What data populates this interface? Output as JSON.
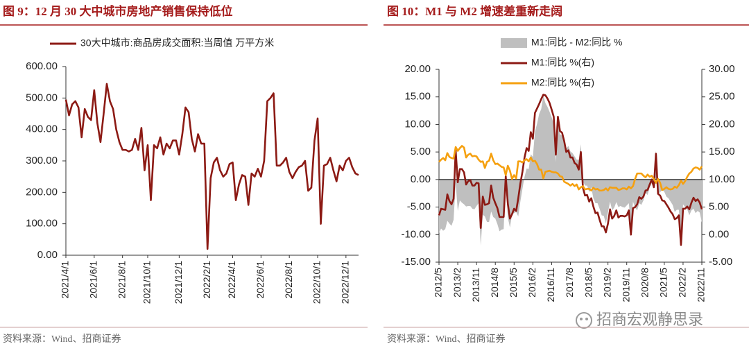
{
  "chart_data": [
    {
      "type": "line",
      "title": "图 9：12 月 30 大中城市房地产销售保持低位",
      "source": "资料来源：Wind、招商证券",
      "categories": [
        "2021/4/1",
        null,
        null,
        null,
        null,
        null,
        null,
        null,
        null,
        "2021/6/1",
        null,
        null,
        null,
        null,
        null,
        null,
        null,
        null,
        "2021/8/1",
        null,
        null,
        null,
        null,
        null,
        null,
        null,
        "2021/10/1",
        null,
        null,
        null,
        null,
        null,
        null,
        null,
        null,
        null,
        "2021/12/1",
        null,
        null,
        null,
        null,
        null,
        null,
        null,
        null,
        "2022/2/1",
        null,
        null,
        null,
        null,
        null,
        null,
        null,
        "2022/4/1",
        null,
        null,
        null,
        null,
        null,
        null,
        null,
        null,
        "2022/6/1",
        null,
        null,
        null,
        null,
        null,
        null,
        null,
        null,
        "2022/8/1",
        null,
        null,
        null,
        null,
        null,
        null,
        null,
        null,
        "2022/10/1",
        null,
        null,
        null,
        null,
        null,
        null,
        null,
        null,
        "2022/12/1",
        null,
        null,
        null,
        null
      ],
      "series": [
        {
          "name": "30大中城市:商品房成交面积:当周值 万平方米",
          "color": "#8c1a14",
          "values": [
            495,
            445,
            480,
            490,
            470,
            375,
            465,
            440,
            430,
            525,
            420,
            360,
            450,
            545,
            490,
            465,
            400,
            360,
            335,
            335,
            330,
            335,
            370,
            335,
            405,
            270,
            350,
            175,
            350,
            340,
            375,
            320,
            355,
            340,
            365,
            365,
            320,
            385,
            470,
            455,
            370,
            330,
            385,
            355,
            355,
            20,
            245,
            295,
            310,
            270,
            250,
            260,
            290,
            295,
            175,
            225,
            255,
            250,
            160,
            260,
            250,
            275,
            250,
            300,
            490,
            500,
            515,
            285,
            285,
            295,
            310,
            265,
            245,
            265,
            280,
            285,
            300,
            205,
            215,
            365,
            435,
            100,
            285,
            290,
            310,
            270,
            235,
            285,
            270,
            300,
            310,
            280,
            260,
            255
          ]
        }
      ],
      "ylim": [
        0,
        600
      ],
      "yticks": [
        {
          "value": 0,
          "label": "0.00"
        },
        {
          "value": 100,
          "label": "100.00"
        },
        {
          "value": 200,
          "label": "200.00"
        },
        {
          "value": 300,
          "label": "300.00"
        },
        {
          "value": 400,
          "label": "400.00"
        },
        {
          "value": 500,
          "label": "500.00"
        },
        {
          "value": 600,
          "label": "600.00"
        }
      ],
      "grid": false
    },
    {
      "type": "combo",
      "title": "图 10：M1 与 M2 增速差重新走阔",
      "source": "资料来源：Wind、招商证券",
      "categories": [
        "2012/5",
        null,
        null,
        null,
        null,
        null,
        null,
        null,
        null,
        "2013/2",
        null,
        null,
        null,
        null,
        null,
        null,
        null,
        null,
        "2013/11",
        null,
        null,
        null,
        null,
        null,
        null,
        null,
        null,
        "2014/8",
        null,
        null,
        null,
        null,
        null,
        null,
        null,
        null,
        "2015/5",
        null,
        null,
        null,
        null,
        null,
        null,
        null,
        null,
        "2016/2",
        null,
        null,
        null,
        null,
        null,
        null,
        null,
        null,
        "2016/11",
        null,
        null,
        null,
        null,
        null,
        null,
        null,
        null,
        "2017/8",
        null,
        null,
        null,
        null,
        null,
        null,
        null,
        null,
        "2018/5",
        null,
        null,
        null,
        null,
        null,
        null,
        null,
        null,
        "2019/2",
        null,
        null,
        null,
        null,
        null,
        null,
        null,
        null,
        "2019/11",
        null,
        null,
        null,
        null,
        null,
        null,
        null,
        null,
        "2020/8",
        null,
        null,
        null,
        null,
        null,
        null,
        null,
        null,
        "2021/5",
        null,
        null,
        null,
        null,
        null,
        null,
        null,
        null,
        "2022/2",
        null,
        null,
        null,
        null,
        null,
        null,
        null,
        null,
        "2022/11"
      ],
      "series": [
        {
          "name": "M1:同比 - M2:同比 %",
          "type": "area",
          "color": "#bfbfbf",
          "values": [
            -9.7,
            -8.9,
            -9.3,
            -9.0,
            -7.5,
            -8.0,
            -8.4,
            -7.3,
            -0.6,
            -5.7,
            -3.8,
            -4.2,
            -4.5,
            -4.9,
            -4.8,
            -4.8,
            -5.3,
            -5.4,
            -4.8,
            -4.3,
            -12.0,
            -6.4,
            -6.7,
            -7.7,
            -7.7,
            -5.8,
            -6.8,
            -7.1,
            -8.1,
            -9.4,
            -9.1,
            -9.0,
            -0.2,
            -6.9,
            -8.7,
            -6.4,
            -6.1,
            -5.9,
            -6.7,
            -4.0,
            -1.7,
            0.5,
            2.0,
            1.9,
            4.6,
            4.1,
            8.7,
            10.1,
            11.9,
            12.8,
            15.2,
            13.9,
            13.2,
            12.3,
            11.3,
            10.1,
            3.2,
            10.3,
            8.2,
            8.0,
            7.4,
            5.6,
            6.1,
            5.1,
            4.8,
            4.2,
            3.6,
            3.6,
            6.4,
            -0.3,
            -1.1,
            -1.1,
            -2.3,
            -1.4,
            -3.4,
            -4.3,
            -4.3,
            -5.3,
            -6.5,
            -6.6,
            -8.0,
            -6.0,
            -4.0,
            -5.6,
            -5.1,
            -4.1,
            -5.0,
            -4.8,
            -5.0,
            -5.1,
            -4.7,
            -4.3,
            -8.4,
            -4.0,
            -5.1,
            -5.6,
            -4.3,
            -4.6,
            -3.8,
            -2.4,
            -2.8,
            -1.4,
            -0.7,
            -1.5,
            5.3,
            -2.7,
            -2.3,
            -1.9,
            -2.2,
            -3.1,
            -3.4,
            -4.0,
            -4.6,
            -5.9,
            -5.5,
            -5.5,
            -11.7,
            -4.5,
            -5.0,
            -5.4,
            -6.5,
            -5.6,
            -5.3,
            -6.1,
            -5.7,
            -6.0,
            -7.8
          ]
        },
        {
          "name": "M1:同比 %(右)",
          "type": "line",
          "axis": "y2",
          "color": "#8c1a14",
          "values": [
            3.5,
            4.7,
            4.6,
            4.5,
            7.3,
            6.1,
            5.5,
            6.5,
            15.3,
            9.5,
            11.9,
            11.9,
            11.3,
            9.1,
            9.7,
            9.9,
            8.9,
            8.9,
            9.4,
            9.3,
            1.2,
            6.9,
            5.4,
            5.5,
            5.7,
            8.9,
            6.7,
            5.7,
            4.8,
            3.2,
            3.2,
            3.2,
            10.6,
            5.6,
            2.9,
            3.7,
            4.7,
            4.3,
            6.6,
            9.3,
            11.4,
            14.0,
            15.7,
            15.2,
            18.6,
            17.4,
            22.1,
            22.9,
            23.7,
            24.6,
            25.4,
            25.3,
            24.7,
            23.9,
            22.7,
            21.4,
            14.5,
            21.4,
            18.8,
            18.5,
            17.0,
            15.0,
            15.3,
            14.0,
            14.0,
            13.0,
            12.7,
            11.8,
            15.0,
            8.5,
            7.1,
            7.2,
            6.0,
            6.6,
            5.1,
            3.9,
            4.0,
            2.7,
            1.5,
            1.5,
            0.4,
            2.0,
            4.6,
            2.9,
            3.4,
            4.4,
            3.1,
            3.4,
            3.4,
            3.3,
            3.5,
            4.4,
            0.0,
            4.8,
            5.0,
            5.5,
            6.8,
            6.5,
            6.9,
            8.0,
            8.1,
            9.1,
            10.0,
            8.6,
            14.7,
            7.4,
            7.1,
            6.2,
            6.1,
            5.5,
            4.9,
            4.2,
            3.7,
            2.8,
            3.0,
            3.5,
            -1.9,
            4.7,
            4.7,
            5.1,
            4.6,
            5.8,
            6.7,
            6.1,
            6.4,
            5.8,
            4.6
          ]
        },
        {
          "name": "M2:同比 %(右)",
          "type": "line",
          "axis": "y2",
          "color": "#f5a00f",
          "values": [
            13.2,
            13.6,
            13.9,
            13.5,
            14.8,
            14.1,
            13.9,
            13.8,
            15.9,
            15.2,
            15.7,
            16.1,
            15.8,
            14.0,
            14.5,
            14.7,
            14.2,
            14.3,
            14.2,
            13.6,
            13.2,
            13.3,
            12.1,
            13.2,
            13.4,
            14.7,
            13.5,
            12.8,
            12.9,
            12.6,
            12.3,
            12.2,
            10.8,
            12.5,
            11.6,
            10.1,
            10.8,
            10.2,
            13.3,
            13.3,
            13.1,
            13.5,
            13.7,
            13.3,
            14.0,
            13.3,
            13.4,
            12.8,
            11.8,
            11.8,
            10.2,
            11.4,
            11.5,
            11.6,
            11.4,
            11.3,
            11.3,
            11.1,
            10.6,
            10.5,
            9.6,
            9.4,
            9.2,
            8.9,
            9.2,
            8.8,
            9.1,
            8.2,
            8.6,
            8.8,
            8.2,
            8.3,
            8.3,
            8.0,
            8.5,
            8.2,
            8.3,
            8.0,
            8.0,
            8.1,
            8.4,
            8.0,
            8.6,
            8.5,
            8.5,
            8.5,
            8.1,
            8.2,
            8.4,
            8.4,
            8.2,
            8.7,
            8.4,
            8.8,
            10.1,
            11.1,
            11.1,
            11.1,
            10.7,
            10.4,
            10.9,
            10.5,
            10.7,
            10.1,
            9.4,
            10.1,
            9.4,
            8.1,
            8.3,
            8.6,
            8.3,
            8.2,
            8.3,
            8.7,
            8.5,
            9.0,
            9.8,
            9.2,
            9.7,
            10.5,
            11.1,
            11.4,
            12.0,
            12.2,
            12.1,
            11.8,
            12.4
          ]
        }
      ],
      "ylim": [
        -15,
        20
      ],
      "yticks": [
        {
          "value": -15,
          "label": "-15.00"
        },
        {
          "value": -10,
          "label": "-10.00"
        },
        {
          "value": -5,
          "label": "-5.00"
        },
        {
          "value": 0,
          "label": "0.00"
        },
        {
          "value": 5,
          "label": "5.00"
        },
        {
          "value": 10,
          "label": "10.00"
        },
        {
          "value": 15,
          "label": "15.00"
        },
        {
          "value": 20,
          "label": "20.00"
        }
      ],
      "y2lim": [
        -5,
        30
      ],
      "y2ticks": [
        {
          "value": -5,
          "label": "-5.00"
        },
        {
          "value": 0,
          "label": "0.00"
        },
        {
          "value": 5,
          "label": "5.00"
        },
        {
          "value": 10,
          "label": "10.00"
        },
        {
          "value": 15,
          "label": "15.00"
        },
        {
          "value": 20,
          "label": "20.00"
        },
        {
          "value": 25,
          "label": "25.00"
        },
        {
          "value": 30,
          "label": "30.00"
        }
      ],
      "grid": false
    }
  ],
  "watermark": "招商宏观静思录"
}
